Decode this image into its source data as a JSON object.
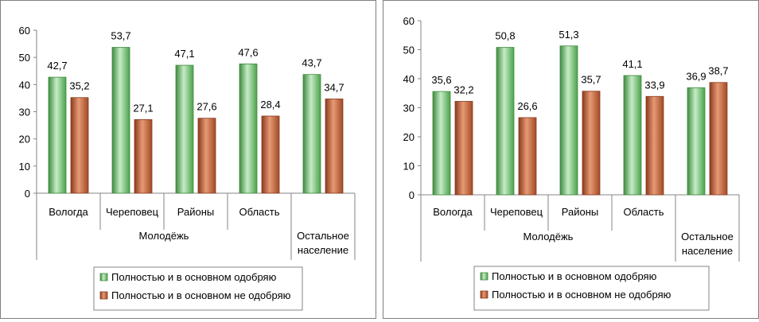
{
  "chart_data": [
    {
      "type": "bar",
      "categories": [
        "Вологда",
        "Череповец",
        "Районы",
        "Область",
        ""
      ],
      "group_labels": [
        "Молодёжь",
        "Остальное население"
      ],
      "series": [
        {
          "name": "Полностью и в основном одобряю",
          "values": [
            42.7,
            53.7,
            47.1,
            47.6,
            43.7
          ],
          "labels": [
            "42,7",
            "53,7",
            "47,1",
            "47,6",
            "43,7"
          ]
        },
        {
          "name": "Полностью и в основном не одобряю",
          "values": [
            35.2,
            27.1,
            27.6,
            28.4,
            34.7
          ],
          "labels": [
            "35,2",
            "27,1",
            "27,6",
            "28,4",
            "34,7"
          ]
        }
      ],
      "ylim": [
        0,
        60
      ],
      "yticks": [
        "0",
        "10",
        "20",
        "30",
        "40",
        "50",
        "60"
      ],
      "legend_position": "bottom"
    },
    {
      "type": "bar",
      "categories": [
        "Вологда",
        "Череповец",
        "Районы",
        "Область",
        ""
      ],
      "group_labels": [
        "Молодёжь",
        "Остальное население"
      ],
      "series": [
        {
          "name": "Полностью и в основном одобряю",
          "values": [
            35.6,
            50.8,
            51.3,
            41.1,
            36.9
          ],
          "labels": [
            "35,6",
            "50,8",
            "51,3",
            "41,1",
            "36,9"
          ]
        },
        {
          "name": "Полностью и в основном не одобряю",
          "values": [
            32.2,
            26.6,
            35.7,
            33.9,
            38.7
          ],
          "labels": [
            "32,2",
            "26,6",
            "35,7",
            "33,9",
            "38,7"
          ]
        }
      ],
      "ylim": [
        0,
        60
      ],
      "yticks": [
        "0",
        "10",
        "20",
        "30",
        "40",
        "50",
        "60"
      ],
      "legend_position": "bottom"
    }
  ],
  "colors": {
    "green_dark": "#3f8a3f",
    "green_mid": "#5fb95f",
    "green_light": "#c6ecc6",
    "brown_dark": "#8a3a1e",
    "brown_mid": "#b5562f",
    "brown_light": "#e69a74"
  }
}
